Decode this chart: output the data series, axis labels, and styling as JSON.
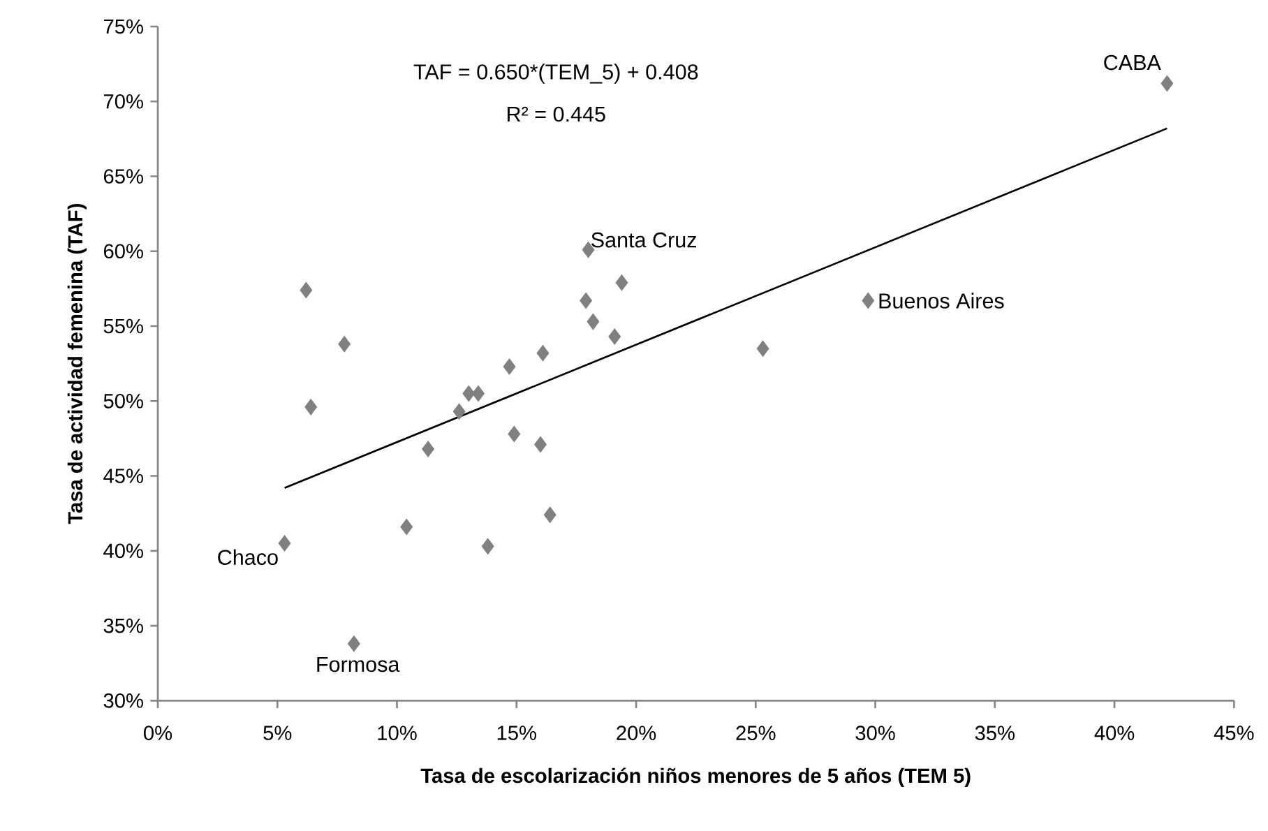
{
  "chart_data": {
    "type": "scatter",
    "xlabel": "Tasa de escolarización niños menores de 5 años (TEM 5)",
    "ylabel": "Tasa de actividad femenina (TAF)",
    "xlim": [
      0,
      45
    ],
    "ylim": [
      30,
      75
    ],
    "xticks": [
      {
        "value": 0,
        "label": "0%"
      },
      {
        "value": 5,
        "label": "5%"
      },
      {
        "value": 10,
        "label": "10%"
      },
      {
        "value": 15,
        "label": "15%"
      },
      {
        "value": 20,
        "label": "20%"
      },
      {
        "value": 25,
        "label": "25%"
      },
      {
        "value": 30,
        "label": "30%"
      },
      {
        "value": 35,
        "label": "35%"
      },
      {
        "value": 40,
        "label": "40%"
      },
      {
        "value": 45,
        "label": "45%"
      }
    ],
    "yticks": [
      {
        "value": 30,
        "label": "30%"
      },
      {
        "value": 35,
        "label": "35%"
      },
      {
        "value": 40,
        "label": "40%"
      },
      {
        "value": 45,
        "label": "45%"
      },
      {
        "value": 50,
        "label": "50%"
      },
      {
        "value": 55,
        "label": "55%"
      },
      {
        "value": 60,
        "label": "60%"
      },
      {
        "value": 65,
        "label": "65%"
      },
      {
        "value": 70,
        "label": "70%"
      },
      {
        "value": 75,
        "label": "75%"
      }
    ],
    "marker": "diamond",
    "grid": false,
    "series": [
      {
        "color": "#808080",
        "x": [
          6.2,
          7.8,
          6.4,
          12.6,
          13.0,
          13.4,
          14.7,
          16.1,
          18.0,
          19.4,
          17.9,
          18.2,
          19.1,
          42.2,
          25.3,
          29.7,
          5.3,
          10.4,
          11.3,
          14.9,
          16.0,
          16.4,
          13.8,
          8.2
        ],
        "values": [
          57.4,
          53.8,
          49.6,
          49.3,
          50.5,
          50.5,
          52.3,
          53.2,
          60.1,
          57.9,
          56.7,
          55.3,
          54.3,
          71.2,
          53.5,
          56.7,
          40.5,
          41.6,
          46.8,
          47.8,
          47.1,
          42.4,
          40.3,
          33.8
        ]
      },
      {
        "type": "line",
        "color": "#000000",
        "marker": "none",
        "line_style": "solid",
        "x": [
          5.3,
          42.2
        ],
        "values": [
          44.2,
          68.2
        ]
      }
    ],
    "annotations": [
      "TAF = 0.650*(TEM_5) + 0.408",
      "R² = 0.445",
      {
        "text": "Chaco",
        "x": 5.3,
        "y": 40.5
      },
      {
        "text": "Formosa",
        "x": 8.2,
        "y": 33.8
      },
      {
        "text": "Santa Cruz",
        "x": 18.0,
        "y": 60.1
      },
      {
        "text": "Buenos Aires",
        "x": 29.7,
        "y": 56.7
      },
      {
        "text": "CABA",
        "x": 42.2,
        "y": 71.2
      }
    ]
  }
}
